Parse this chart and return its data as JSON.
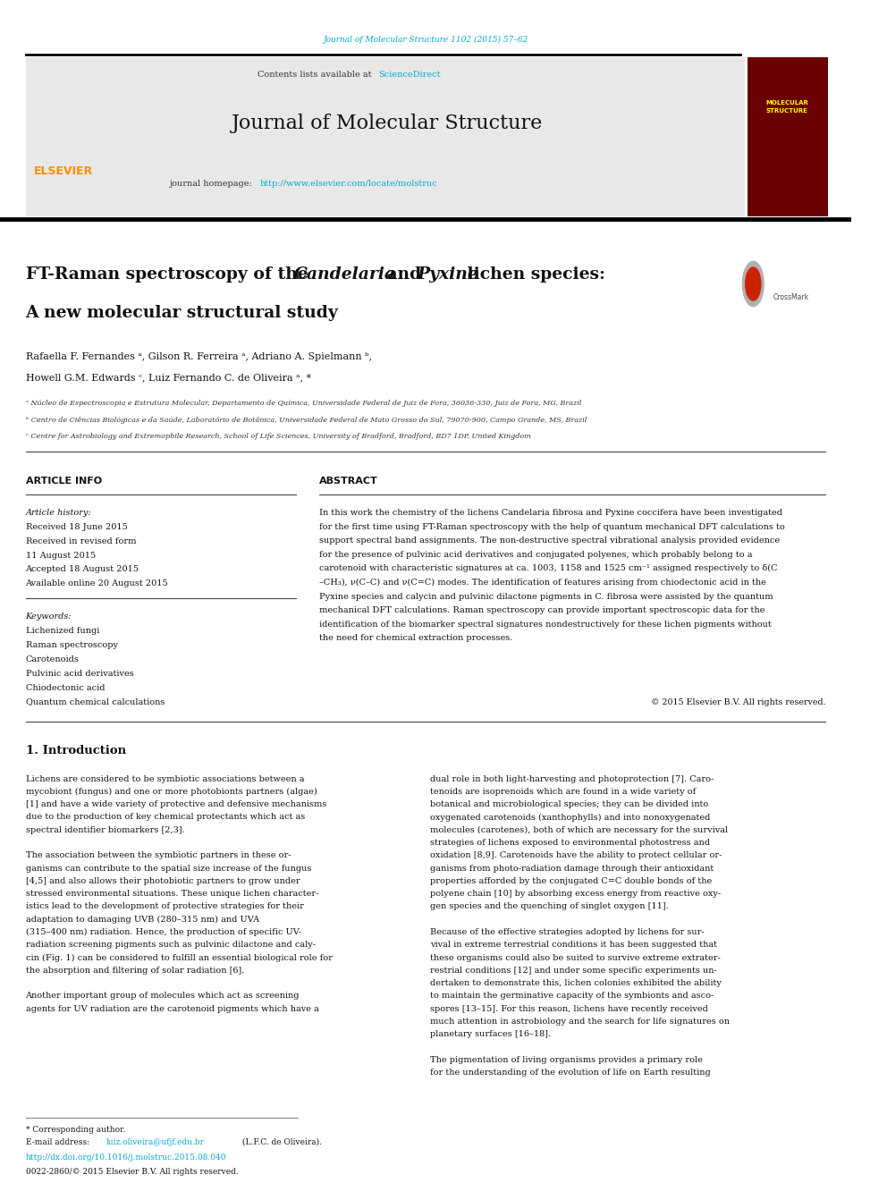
{
  "page_width": 9.92,
  "page_height": 13.23,
  "background_color": "#ffffff",
  "top_journal_ref": "Journal of Molecular Structure 1102 (2015) 57–62",
  "top_journal_ref_color": "#00aacc",
  "header_bg_color": "#e8e8e8",
  "journal_title": "Journal of Molecular Structure",
  "contents_text": "Contents lists available at ",
  "sciencedirect_text": "ScienceDirect",
  "sciencedirect_color": "#00aacc",
  "homepage_label": "journal homepage: ",
  "homepage_url": "http://www.elsevier.com/locate/molstruc",
  "homepage_url_color": "#00aacc",
  "elsevier_color": "#ff8c00",
  "article_info_title": "ARTICLE INFO",
  "abstract_title": "ABSTRACT",
  "abstract_lines": [
    "In this work the chemistry of the lichens Candelaria fibrosa and Pyxine coccifera have been investigated",
    "for the first time using FT-Raman spectroscopy with the help of quantum mechanical DFT calculations to",
    "support spectral band assignments. The non-destructive spectral vibrational analysis provided evidence",
    "for the presence of pulvinic acid derivatives and conjugated polyenes, which probably belong to a",
    "carotenoid with characteristic signatures at ca. 1003, 1158 and 1525 cm⁻¹ assigned respectively to δ(C",
    "–CH₃), ν(C–C) and ν(C=C) modes. The identification of features arising from chiodectonic acid in the",
    "Pyxine species and calycin and pulvinic dilactone pigments in C. fibrosa were assisted by the quantum",
    "mechanical DFT calculations. Raman spectroscopy can provide important spectroscopic data for the",
    "identification of the biomarker spectral signatures nondestructively for these lichen pigments without",
    "the need for chemical extraction processes."
  ],
  "left_intro_lines": [
    "Lichens are considered to be symbiotic associations between a",
    "mycobiont (fungus) and one or more photobionts partners (algae)",
    "[1] and have a wide variety of protective and defensive mechanisms",
    "due to the production of key chemical protectants which act as",
    "spectral identifier biomarkers [2,3].",
    "",
    "The association between the symbiotic partners in these or-",
    "ganisms can contribute to the spatial size increase of the fungus",
    "[4,5] and also allows their photobiotic partners to grow under",
    "stressed environmental situations. These unique lichen character-",
    "istics lead to the development of protective strategies for their",
    "adaptation to damaging UVB (280–315 nm) and UVA",
    "(315–400 nm) radiation. Hence, the production of specific UV-",
    "radiation screening pigments such as pulvinic dilactone and caly-",
    "cin (Fig. 1) can be considered to fulfill an essential biological role for",
    "the absorption and filtering of solar radiation [6].",
    "",
    "Another important group of molecules which act as screening",
    "agents for UV radiation are the carotenoid pigments which have a"
  ],
  "right_intro_lines": [
    "dual role in both light-harvesting and photoprotection [7]. Caro-",
    "tenoids are isoprenoids which are found in a wide variety of",
    "botanical and microbiological species; they can be divided into",
    "oxygenated carotenoids (xanthophylls) and into nonoxygenated",
    "molecules (carotenes), both of which are necessary for the survival",
    "strategies of lichens exposed to environmental photostress and",
    "oxidation [8,9]. Carotenoids have the ability to protect cellular or-",
    "ganisms from photo-radiation damage through their antioxidant",
    "properties afforded by the conjugated C=C double bonds of the",
    "polyene chain [10] by absorbing excess energy from reactive oxy-",
    "gen species and the quenching of singlet oxygen [11].",
    "",
    "Because of the effective strategies adopted by lichens for sur-",
    "vival in extreme terrestrial conditions it has been suggested that",
    "these organisms could also be suited to survive extreme extrater-",
    "restrial conditions [12] and under some specific experiments un-",
    "dertaken to demonstrate this, lichen colonies exhibited the ability",
    "to maintain the germinative capacity of the symbionts and asco-",
    "spores [13–15]. For this reason, lichens have recently received",
    "much attention in astrobiology and the search for life signatures on",
    "planetary surfaces [16–18].",
    "",
    "The pigmentation of living organisms provides a primary role",
    "for the understanding of the evolution of life on Earth resulting"
  ],
  "footnote_doi": "http://dx.doi.org/10.1016/j.molstruc.2015.08.040",
  "footnote_doi_color": "#00aacc",
  "footnote_issn": "0022-2860/© 2015 Elsevier B.V. All rights reserved."
}
